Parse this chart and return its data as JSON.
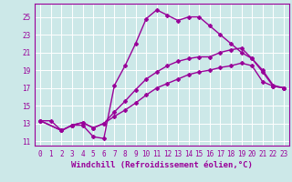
{
  "bg_color": "#cce8e8",
  "grid_color": "#ffffff",
  "line_color": "#990099",
  "marker": "D",
  "markersize": 2.0,
  "linewidth": 1.0,
  "xlabel": "Windchill (Refroidissement éolien,°C)",
  "xlim": [
    -0.5,
    23.5
  ],
  "ylim": [
    10.5,
    26.5
  ],
  "xticks": [
    0,
    1,
    2,
    3,
    4,
    5,
    6,
    7,
    8,
    9,
    10,
    11,
    12,
    13,
    14,
    15,
    16,
    17,
    18,
    19,
    20,
    21,
    22,
    23
  ],
  "yticks": [
    11,
    13,
    15,
    17,
    19,
    21,
    23,
    25
  ],
  "xlabel_fontsize": 6.5,
  "tick_fontsize": 5.5,
  "line1_x": [
    0,
    1,
    2,
    3,
    4,
    5,
    6,
    7,
    8,
    9,
    10,
    11,
    12,
    13,
    14,
    15,
    16,
    17,
    18,
    19,
    20,
    21,
    22,
    23
  ],
  "line1_y": [
    13.3,
    13.3,
    12.2,
    12.8,
    12.8,
    11.5,
    11.3,
    17.3,
    19.5,
    22.0,
    24.8,
    25.8,
    25.2,
    24.6,
    25.0,
    25.0,
    24.0,
    23.0,
    22.0,
    21.0,
    20.3,
    18.8,
    17.2,
    17.0
  ],
  "line2_x": [
    0,
    2,
    3,
    4,
    5,
    6,
    7,
    8,
    9,
    10,
    11,
    12,
    13,
    14,
    15,
    16,
    17,
    18,
    19,
    20,
    21,
    22,
    23
  ],
  "line2_y": [
    13.3,
    12.2,
    12.8,
    13.1,
    12.5,
    13.0,
    14.3,
    15.5,
    16.8,
    18.0,
    18.8,
    19.5,
    20.0,
    20.3,
    20.5,
    20.5,
    21.0,
    21.3,
    21.5,
    20.3,
    19.0,
    17.3,
    17.0
  ],
  "line3_x": [
    0,
    2,
    3,
    4,
    5,
    6,
    7,
    8,
    9,
    10,
    11,
    12,
    13,
    14,
    15,
    16,
    17,
    18,
    19,
    20,
    21,
    22,
    23
  ],
  "line3_y": [
    13.3,
    12.2,
    12.8,
    13.1,
    12.5,
    13.0,
    13.8,
    14.5,
    15.3,
    16.2,
    17.0,
    17.5,
    18.0,
    18.5,
    18.8,
    19.0,
    19.3,
    19.5,
    19.8,
    19.5,
    17.7,
    17.2,
    17.0
  ]
}
